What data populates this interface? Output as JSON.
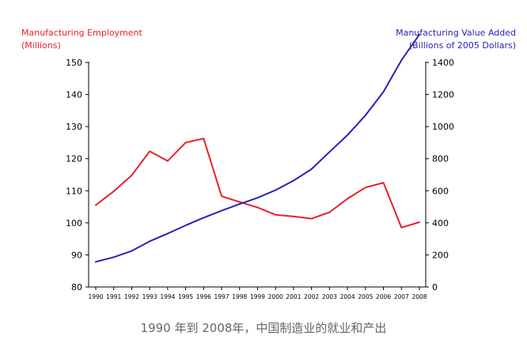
{
  "chart_data": {
    "type": "line",
    "x": [
      1990,
      1991,
      1992,
      1993,
      1994,
      1995,
      1996,
      1997,
      1998,
      1999,
      2000,
      2001,
      2002,
      2003,
      2004,
      2005,
      2006,
      2007,
      2008
    ],
    "x_tick_labels": [
      "1990",
      "1991",
      "1992",
      "1993",
      "1994",
      "1995",
      "1996",
      "1997",
      "1998",
      "1999",
      "2000",
      "2001",
      "2002",
      "2003",
      "2004",
      "2005",
      "2006",
      "2007",
      "2008"
    ],
    "left_axis": {
      "label_line1": "Manufacturing Employment",
      "label_line2": "(Millions)",
      "ylim": [
        80,
        150
      ],
      "ticks": [
        80,
        90,
        100,
        110,
        120,
        130,
        140,
        150
      ],
      "color": "#e8212a"
    },
    "right_axis": {
      "label_line1": "Manufacturing Value Added",
      "label_line2": "(Billions of 2005 Dollars)",
      "ylim": [
        0,
        1400
      ],
      "ticks": [
        0,
        200,
        400,
        600,
        800,
        1000,
        1200,
        1400
      ],
      "color": "#2a22b5"
    },
    "series": [
      {
        "axis": "left",
        "color": "#e8212a",
        "values": [
          105.5,
          109.8,
          114.8,
          122.3,
          119.3,
          125.0,
          126.3,
          108.3,
          106.5,
          104.8,
          102.5,
          102.0,
          101.3,
          103.3,
          107.5,
          111.0,
          112.5,
          98.5,
          100.2
        ]
      },
      {
        "axis": "right",
        "color": "#2a22b5",
        "values": [
          157,
          186,
          225,
          285,
          333,
          384,
          432,
          476,
          517,
          556,
          604,
          663,
          735,
          842,
          947,
          1070,
          1217,
          1414,
          1574
        ]
      }
    ],
    "grid": false,
    "legend": "none"
  },
  "caption": "1990 年到 2008年，中国制造业的就业和产出"
}
